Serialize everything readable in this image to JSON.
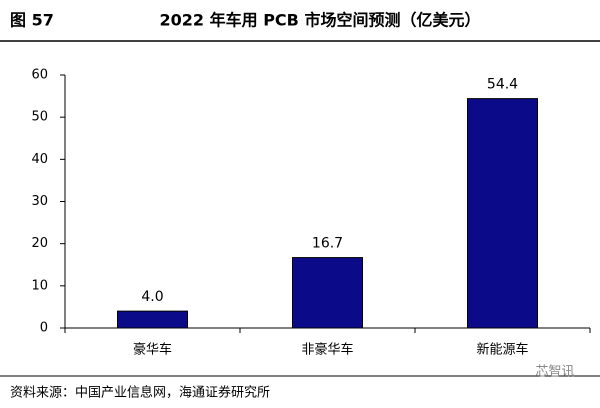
{
  "header": {
    "figure_label": "图 57"
  },
  "chart_data": {
    "type": "bar",
    "title": "2022 年车用 PCB 市场空间预测（亿美元）",
    "categories": [
      "豪华车",
      "非豪华车",
      "新能源车"
    ],
    "values": [
      4.0,
      16.7,
      54.4
    ],
    "value_labels": [
      "4.0",
      "16.7",
      "54.4"
    ],
    "color": "#0b0b8a",
    "ylim": [
      0,
      60
    ],
    "yticks": [
      0,
      10,
      20,
      30,
      40,
      50,
      60
    ],
    "grid": false
  },
  "footer": {
    "source": "资料来源：中国产业信息网，海通证券研究所",
    "watermark": "芯智讯"
  }
}
